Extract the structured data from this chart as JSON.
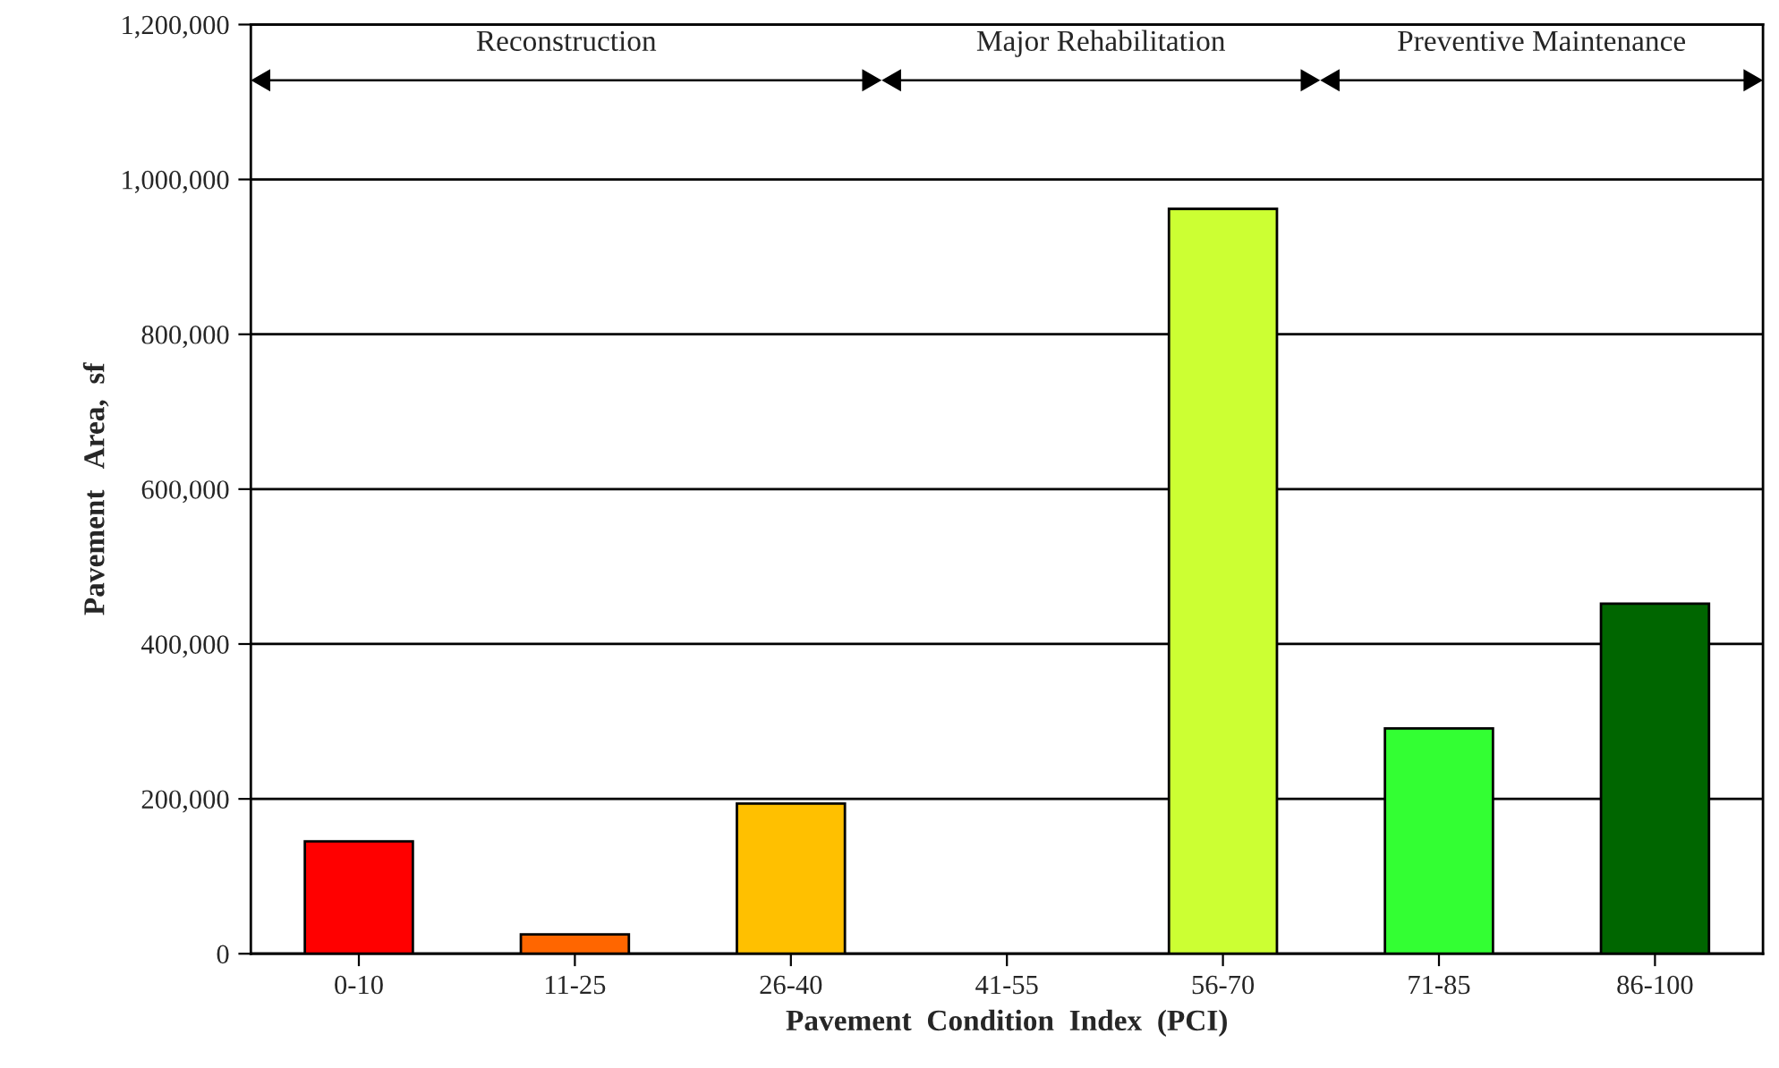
{
  "chart_data": {
    "type": "bar",
    "xlabel": "Pavement  Condition  Index  (PCI)",
    "ylabel": "Pavement   Area,  sf",
    "categories": [
      "0-10",
      "11-25",
      "26-40",
      "41-55",
      "56-70",
      "71-85",
      "86-100"
    ],
    "values": [
      145000,
      25000,
      194000,
      null,
      962000,
      291000,
      452000
    ],
    "colors": [
      "#ff0000",
      "#ff6600",
      "#ffc000",
      null,
      "#ccff33",
      "#33ff33",
      "#006600"
    ],
    "ylim": [
      0,
      1200000
    ],
    "yticks": [
      {
        "value": 0,
        "label": "0"
      },
      {
        "value": 200000,
        "label": "200,000"
      },
      {
        "value": 400000,
        "label": "400,000"
      },
      {
        "value": 600000,
        "label": "600,000"
      },
      {
        "value": 800000,
        "label": "800,000"
      },
      {
        "value": 1000000,
        "label": "1,000,000"
      },
      {
        "value": 1200000,
        "label": "1,200,000"
      }
    ],
    "grid": "y",
    "annotations": [
      "Reconstruction",
      "Major Rehabilitation",
      "Preventive Maintenance"
    ]
  }
}
